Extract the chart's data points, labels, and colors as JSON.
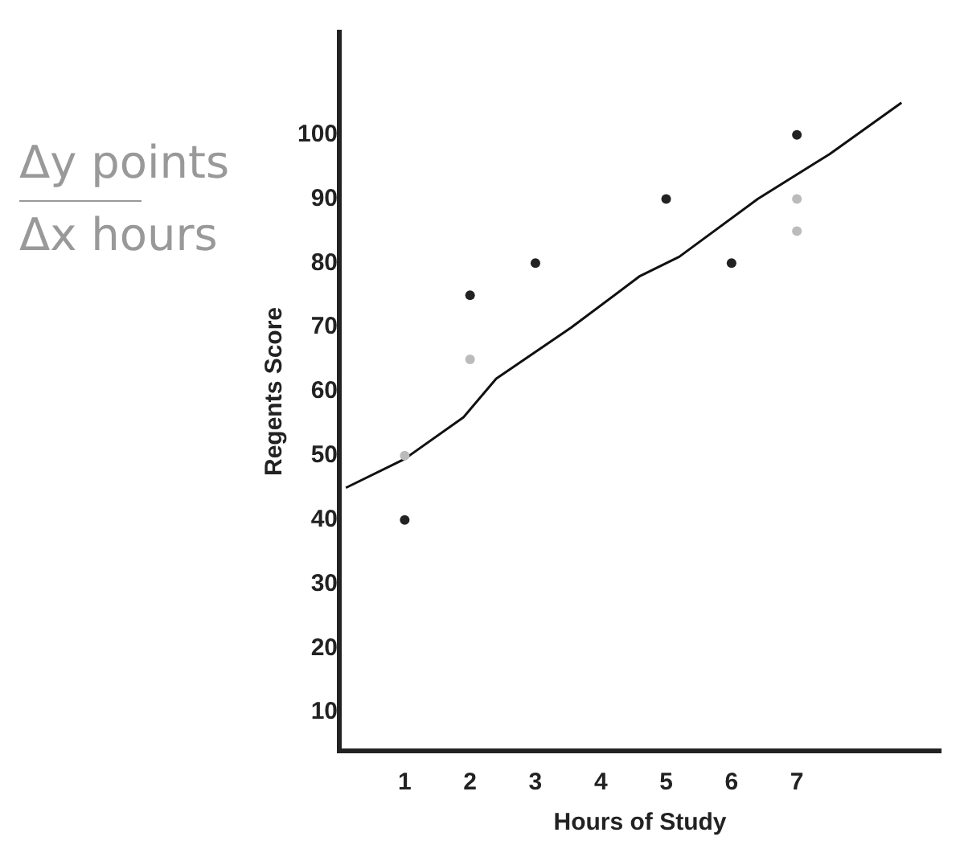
{
  "chart_data": {
    "type": "scatter",
    "xlabel": "Hours of Study",
    "ylabel": "Regents Score",
    "xlim": [
      0,
      9.2
    ],
    "xticks": [
      1,
      2,
      3,
      4,
      5,
      6,
      7
    ],
    "ylim": [
      4,
      116
    ],
    "yticks": [
      10,
      20,
      30,
      40,
      50,
      60,
      70,
      80,
      90,
      100
    ],
    "grid": false,
    "legend": false,
    "marker": "circle",
    "annotations": [
      "Δy points",
      "Δx hours"
    ],
    "series": [
      {
        "color": "#222222",
        "x": [
          1,
          2,
          3,
          5,
          6,
          7
        ],
        "values": [
          40,
          75,
          80,
          90,
          80,
          100
        ]
      },
      {
        "color": "#bbbbbb",
        "x": [
          1,
          2,
          7,
          7
        ],
        "values": [
          50,
          65,
          90,
          85
        ]
      },
      {
        "type": "line",
        "color": "#111111",
        "marker": "none",
        "x": [
          0.1,
          1,
          1.9,
          2.4,
          3.55,
          4.6,
          5.2,
          6.4,
          7.5,
          8.6
        ],
        "values": [
          45,
          49.5,
          56,
          62,
          70,
          78,
          81,
          90,
          97,
          105
        ]
      }
    ]
  }
}
